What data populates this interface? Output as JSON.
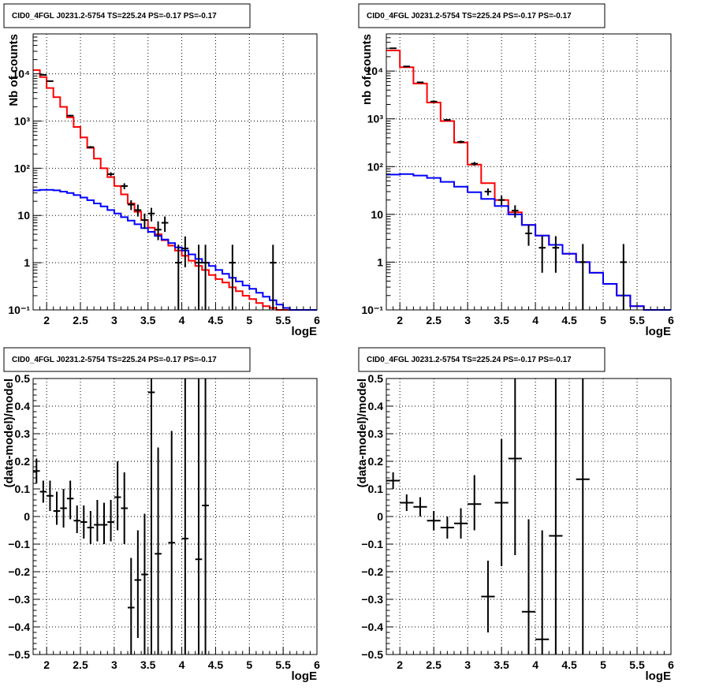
{
  "colors": {
    "total_model": "#ff0000",
    "background_model": "#0000ff",
    "data": "#000000",
    "grid": "#000000",
    "background": "#ffffff"
  },
  "chart_data": [
    {
      "id": "top-left",
      "type": "line",
      "title": "CID0_4FGL J0231.2-5754 TS=225.24 PS=-0.17 PS=-0.17",
      "xlabel": "logE",
      "ylabel": "Nb of counts",
      "xscale": "linear",
      "yscale": "log",
      "xlim": [
        1.8,
        6.0
      ],
      "ylim": [
        0.1,
        70000
      ],
      "grid": true,
      "xticks": [
        2,
        2.5,
        3,
        3.5,
        4,
        4.5,
        5,
        5.5,
        6
      ],
      "xtick_labels": [
        "2",
        "2.5",
        "3",
        "3.5",
        "4",
        "4.5",
        "5",
        "5.5",
        "6"
      ],
      "yticks": [
        0.1,
        1,
        10,
        100,
        1000,
        10000
      ],
      "ytick_labels": [
        "10⁻¹",
        "1",
        "10",
        "10²",
        "10³",
        "10⁴"
      ],
      "series": [
        {
          "role": "total-model",
          "color": "#ff0000",
          "style": "step",
          "edges": [
            1.8,
            1.9,
            2.0,
            2.1,
            2.2,
            2.3,
            2.4,
            2.5,
            2.6,
            2.7,
            2.8,
            2.9,
            3.0,
            3.1,
            3.2,
            3.3,
            3.4,
            3.5,
            3.6,
            3.7,
            3.8,
            3.9,
            4.0,
            4.1,
            4.2,
            4.3,
            4.4,
            4.5,
            4.6,
            4.7,
            4.8,
            4.9,
            5.0,
            5.1,
            5.2,
            5.3,
            5.4,
            5.5,
            5.6,
            5.7,
            5.8,
            5.9,
            6.0
          ],
          "values": [
            12000,
            8500,
            5000,
            3200,
            2000,
            1200,
            750,
            450,
            270,
            160,
            100,
            65,
            42,
            28,
            18,
            12,
            8,
            5.5,
            4,
            3,
            2.3,
            1.8,
            1.4,
            1.1,
            0.85,
            0.7,
            0.55,
            0.45,
            0.38,
            0.3,
            0.25,
            0.2,
            0.17,
            0.14,
            0.12,
            0.11,
            0.1,
            0.1,
            0.1,
            0.1,
            0.1,
            0.1
          ]
        },
        {
          "role": "background-model",
          "color": "#0000ff",
          "style": "step",
          "edges": [
            1.8,
            1.9,
            2.0,
            2.1,
            2.2,
            2.3,
            2.4,
            2.5,
            2.6,
            2.7,
            2.8,
            2.9,
            3.0,
            3.1,
            3.2,
            3.3,
            3.4,
            3.5,
            3.6,
            3.7,
            3.8,
            3.9,
            4.0,
            4.1,
            4.2,
            4.3,
            4.4,
            4.5,
            4.6,
            4.7,
            4.8,
            4.9,
            5.0,
            5.1,
            5.2,
            5.3,
            5.4,
            5.5,
            5.6,
            5.7,
            5.8,
            5.9,
            6.0
          ],
          "values": [
            34,
            35,
            35,
            34,
            32,
            30,
            27,
            24,
            21,
            18,
            15.5,
            13,
            11,
            9.2,
            7.8,
            6.5,
            5.4,
            4.5,
            3.7,
            3.1,
            2.6,
            2.1,
            1.8,
            1.5,
            1.2,
            1.0,
            0.85,
            0.7,
            0.58,
            0.48,
            0.4,
            0.33,
            0.28,
            0.23,
            0.19,
            0.16,
            0.13,
            0.11,
            0.1,
            0.1,
            0.1,
            0.1
          ]
        },
        {
          "role": "data",
          "color": "#000000",
          "style": "errorbar",
          "points": [
            {
              "x": 1.95,
              "y": 9500,
              "ylo": 9300,
              "yhi": 9700
            },
            {
              "x": 2.05,
              "y": 7000,
              "ylo": 6850,
              "yhi": 7150
            },
            {
              "x": 2.35,
              "y": 1300,
              "ylo": 1250,
              "yhi": 1350
            },
            {
              "x": 2.65,
              "y": 280,
              "ylo": 265,
              "yhi": 295
            },
            {
              "x": 2.95,
              "y": 75,
              "ylo": 68,
              "yhi": 82
            },
            {
              "x": 3.15,
              "y": 42,
              "ylo": 36,
              "yhi": 48
            },
            {
              "x": 3.25,
              "y": 17,
              "ylo": 13,
              "yhi": 21
            },
            {
              "x": 3.35,
              "y": 13,
              "ylo": 9.5,
              "yhi": 17
            },
            {
              "x": 3.45,
              "y": 8,
              "ylo": 5.2,
              "yhi": 11
            },
            {
              "x": 3.55,
              "y": 11,
              "ylo": 7.5,
              "yhi": 14.5
            },
            {
              "x": 3.65,
              "y": 5,
              "ylo": 3,
              "yhi": 7.5
            },
            {
              "x": 3.75,
              "y": 7,
              "ylo": 4.5,
              "yhi": 9.5
            },
            {
              "x": 3.95,
              "y": 1,
              "ylo": 0.1,
              "yhi": 2.4
            },
            {
              "x": 4.05,
              "y": 2,
              "ylo": 0.8,
              "yhi": 3.6
            },
            {
              "x": 4.25,
              "y": 1,
              "ylo": 0.1,
              "yhi": 2.4
            },
            {
              "x": 4.35,
              "y": 1,
              "ylo": 0.1,
              "yhi": 2.4
            },
            {
              "x": 4.75,
              "y": 1,
              "ylo": 0.1,
              "yhi": 2.4
            },
            {
              "x": 5.35,
              "y": 1,
              "ylo": 0.1,
              "yhi": 2.4
            }
          ]
        }
      ]
    },
    {
      "id": "top-right",
      "type": "line",
      "title": "CID0_4FGL J0231.2-5754 TS=225.24 PS=-0.17 PS=-0.17",
      "xlabel": "logE",
      "ylabel": "nb of counts",
      "xscale": "linear",
      "yscale": "log",
      "xlim": [
        1.8,
        6.0
      ],
      "ylim": [
        0.1,
        60000
      ],
      "grid": true,
      "xticks": [
        2,
        2.5,
        3,
        3.5,
        4,
        4.5,
        5,
        5.5,
        6
      ],
      "xtick_labels": [
        "2",
        "2.5",
        "3",
        "3.5",
        "4",
        "4.5",
        "5",
        "5.5",
        "6"
      ],
      "yticks": [
        0.1,
        1,
        10,
        100,
        1000,
        10000
      ],
      "ytick_labels": [
        "10⁻¹",
        "1",
        "10",
        "10²",
        "10³",
        "10⁴"
      ],
      "series": [
        {
          "role": "total-model",
          "color": "#ff0000",
          "style": "step",
          "edges": [
            1.8,
            2.0,
            2.2,
            2.4,
            2.6,
            2.8,
            3.0,
            3.2,
            3.4,
            3.6,
            3.8,
            4.0,
            4.2,
            4.4,
            4.6,
            4.8,
            5.0,
            5.2,
            5.4,
            5.6,
            5.8,
            6.0
          ],
          "values": [
            27000,
            12000,
            5500,
            2200,
            900,
            320,
            110,
            45,
            20,
            11,
            6,
            3.6,
            2.3,
            1.5,
            1.0,
            0.6,
            0.35,
            0.2,
            0.12,
            0.1,
            0.1
          ]
        },
        {
          "role": "background-model",
          "color": "#0000ff",
          "style": "step",
          "edges": [
            1.8,
            2.0,
            2.2,
            2.4,
            2.6,
            2.8,
            3.0,
            3.2,
            3.4,
            3.6,
            3.8,
            4.0,
            4.2,
            4.4,
            4.6,
            4.8,
            5.0,
            5.2,
            5.4,
            5.6,
            5.8,
            6.0
          ],
          "values": [
            68,
            70,
            65,
            58,
            48,
            38,
            29,
            21,
            15,
            10,
            6,
            3.6,
            2.3,
            1.5,
            1.0,
            0.6,
            0.35,
            0.2,
            0.12,
            0.1,
            0.1
          ]
        },
        {
          "role": "data",
          "color": "#000000",
          "style": "errorbar",
          "points": [
            {
              "x": 1.9,
              "y": 30000,
              "ylo": 29800,
              "yhi": 30200
            },
            {
              "x": 2.1,
              "y": 12500,
              "ylo": 12300,
              "yhi": 12700
            },
            {
              "x": 2.3,
              "y": 5800,
              "ylo": 5650,
              "yhi": 5950
            },
            {
              "x": 2.5,
              "y": 2300,
              "ylo": 2200,
              "yhi": 2400
            },
            {
              "x": 2.7,
              "y": 950,
              "ylo": 920,
              "yhi": 980
            },
            {
              "x": 2.9,
              "y": 330,
              "ylo": 310,
              "yhi": 350
            },
            {
              "x": 3.1,
              "y": 115,
              "ylo": 105,
              "yhi": 125
            },
            {
              "x": 3.3,
              "y": 30,
              "ylo": 25,
              "yhi": 35
            },
            {
              "x": 3.5,
              "y": 20,
              "ylo": 15.5,
              "yhi": 24.5
            },
            {
              "x": 3.7,
              "y": 12,
              "ylo": 8.5,
              "yhi": 15.5
            },
            {
              "x": 3.9,
              "y": 4,
              "ylo": 2.2,
              "yhi": 6
            },
            {
              "x": 4.1,
              "y": 2,
              "ylo": 0.6,
              "yhi": 3.5
            },
            {
              "x": 4.3,
              "y": 2,
              "ylo": 0.6,
              "yhi": 3.5
            },
            {
              "x": 4.7,
              "y": 1,
              "ylo": 0.1,
              "yhi": 2.4
            },
            {
              "x": 5.3,
              "y": 1,
              "ylo": 0.1,
              "yhi": 2.4
            }
          ]
        }
      ]
    },
    {
      "id": "bottom-left",
      "type": "scatter",
      "title": "CID0_4FGL J0231.2-5754 TS=225.24 PS=-0.17 PS=-0.17",
      "xlabel": "logE",
      "ylabel": "(data-model)/model",
      "xscale": "linear",
      "yscale": "linear",
      "xlim": [
        1.8,
        6.0
      ],
      "ylim": [
        -0.5,
        0.5
      ],
      "grid": true,
      "xticks": [
        2,
        2.5,
        3,
        3.5,
        4,
        4.5,
        5,
        5.5,
        6
      ],
      "xtick_labels": [
        "2",
        "2.5",
        "3",
        "3.5",
        "4",
        "4.5",
        "5",
        "5.5",
        "6"
      ],
      "yticks": [
        -0.5,
        -0.4,
        -0.3,
        -0.2,
        -0.1,
        0,
        0.1,
        0.2,
        0.3,
        0.4,
        0.5
      ],
      "ytick_labels": [
        "−0.5",
        "−0.4",
        "−0.3",
        "−0.2",
        "−0.1",
        "0",
        "0.1",
        "0.2",
        "0.3",
        "0.4",
        "0.5"
      ],
      "series": [
        {
          "role": "residuals",
          "color": "#000000",
          "style": "errorbar",
          "xerr": 0.05,
          "points": [
            {
              "x": 1.85,
              "y": 0.165,
              "ylo": 0.12,
              "yhi": 0.21
            },
            {
              "x": 1.95,
              "y": 0.09,
              "ylo": 0.05,
              "yhi": 0.13
            },
            {
              "x": 2.05,
              "y": 0.075,
              "ylo": 0.02,
              "yhi": 0.13
            },
            {
              "x": 2.15,
              "y": 0.02,
              "ylo": -0.03,
              "yhi": 0.09
            },
            {
              "x": 2.25,
              "y": 0.03,
              "ylo": -0.04,
              "yhi": 0.1
            },
            {
              "x": 2.35,
              "y": 0.065,
              "ylo": -0.01,
              "yhi": 0.13
            },
            {
              "x": 2.45,
              "y": -0.015,
              "ylo": -0.06,
              "yhi": 0.04
            },
            {
              "x": 2.55,
              "y": -0.02,
              "ylo": -0.08,
              "yhi": 0.04
            },
            {
              "x": 2.65,
              "y": -0.04,
              "ylo": -0.1,
              "yhi": 0.02
            },
            {
              "x": 2.75,
              "y": -0.03,
              "ylo": -0.09,
              "yhi": 0.06
            },
            {
              "x": 2.85,
              "y": -0.03,
              "ylo": -0.1,
              "yhi": 0.05
            },
            {
              "x": 2.95,
              "y": -0.02,
              "ylo": -0.09,
              "yhi": 0.06
            },
            {
              "x": 3.05,
              "y": 0.07,
              "ylo": -0.05,
              "yhi": 0.2
            },
            {
              "x": 3.15,
              "y": 0.03,
              "ylo": -0.1,
              "yhi": 0.16
            },
            {
              "x": 3.25,
              "y": -0.33,
              "ylo": -0.5,
              "yhi": -0.15
            },
            {
              "x": 3.35,
              "y": -0.23,
              "ylo": -0.44,
              "yhi": -0.05
            },
            {
              "x": 3.45,
              "y": -0.21,
              "ylo": -0.5,
              "yhi": 0.01
            },
            {
              "x": 3.55,
              "y": 0.45,
              "ylo": -0.5,
              "yhi": 0.5
            },
            {
              "x": 3.65,
              "y": -0.135,
              "ylo": -0.5,
              "yhi": 0.25
            },
            {
              "x": 3.85,
              "y": -0.095,
              "ylo": -0.5,
              "yhi": 0.31
            },
            {
              "x": 4.05,
              "y": -0.08,
              "ylo": -0.5,
              "yhi": 0.5
            },
            {
              "x": 4.25,
              "y": -0.155,
              "ylo": -0.5,
              "yhi": 0.5
            },
            {
              "x": 4.35,
              "y": 0.04,
              "ylo": -0.5,
              "yhi": 0.5
            }
          ]
        }
      ]
    },
    {
      "id": "bottom-right",
      "type": "scatter",
      "title": "CID0_4FGL J0231.2-5754 TS=225.24 PS=-0.17 PS=-0.17",
      "xlabel": "logE",
      "ylabel": "(data-model)/model",
      "xscale": "linear",
      "yscale": "linear",
      "xlim": [
        1.8,
        6.0
      ],
      "ylim": [
        -0.5,
        0.5
      ],
      "grid": true,
      "xticks": [
        2,
        2.5,
        3,
        3.5,
        4,
        4.5,
        5,
        5.5,
        6
      ],
      "xtick_labels": [
        "2",
        "2.5",
        "3",
        "3.5",
        "4",
        "4.5",
        "5",
        "5.5",
        "6"
      ],
      "yticks": [
        -0.5,
        -0.4,
        -0.3,
        -0.2,
        -0.1,
        0,
        0.1,
        0.2,
        0.3,
        0.4,
        0.5
      ],
      "ytick_labels": [
        "−0.5",
        "−0.4",
        "−0.3",
        "−0.2",
        "−0.1",
        "0",
        "0.1",
        "0.2",
        "0.3",
        "0.4",
        "0.5"
      ],
      "series": [
        {
          "role": "residuals",
          "color": "#000000",
          "style": "errorbar",
          "xerr": 0.1,
          "points": [
            {
              "x": 1.9,
              "y": 0.13,
              "ylo": 0.1,
              "yhi": 0.16
            },
            {
              "x": 2.1,
              "y": 0.05,
              "ylo": 0.02,
              "yhi": 0.08
            },
            {
              "x": 2.3,
              "y": 0.035,
              "ylo": 0.0,
              "yhi": 0.07
            },
            {
              "x": 2.5,
              "y": -0.015,
              "ylo": -0.05,
              "yhi": 0.02
            },
            {
              "x": 2.7,
              "y": -0.04,
              "ylo": -0.08,
              "yhi": 0.0
            },
            {
              "x": 2.9,
              "y": -0.025,
              "ylo": -0.08,
              "yhi": 0.03
            },
            {
              "x": 3.1,
              "y": 0.045,
              "ylo": -0.05,
              "yhi": 0.15
            },
            {
              "x": 3.3,
              "y": -0.29,
              "ylo": -0.42,
              "yhi": -0.16
            },
            {
              "x": 3.5,
              "y": 0.05,
              "ylo": -0.18,
              "yhi": 0.28
            },
            {
              "x": 3.7,
              "y": 0.21,
              "ylo": -0.14,
              "yhi": 0.5
            },
            {
              "x": 3.9,
              "y": -0.345,
              "ylo": -0.5,
              "yhi": -0.01
            },
            {
              "x": 4.1,
              "y": -0.445,
              "ylo": -0.5,
              "yhi": -0.05
            },
            {
              "x": 4.3,
              "y": -0.07,
              "ylo": -0.5,
              "yhi": 0.5
            },
            {
              "x": 4.7,
              "y": 0.135,
              "ylo": -0.5,
              "yhi": 0.5
            }
          ]
        }
      ]
    }
  ]
}
